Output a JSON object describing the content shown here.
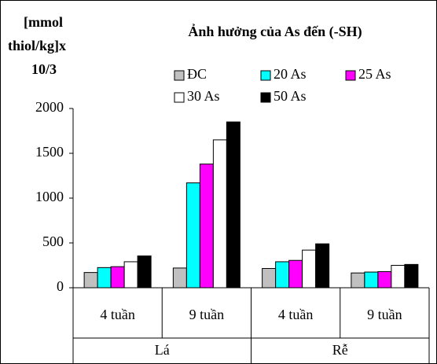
{
  "chart_data": {
    "type": "bar",
    "title": "Ảnh hưởng của As đến (-SH)",
    "y_label": [
      "[mmol",
      "thiol/kg]x",
      "10/3"
    ],
    "categories": [
      "4 tuần",
      "9 tuần",
      "4 tuần",
      "9 tuần"
    ],
    "category_groups": [
      "Lá",
      "Rễ"
    ],
    "series": [
      {
        "name": "ĐC",
        "color": "#c0c0c0",
        "values": [
          170,
          220,
          215,
          165
        ]
      },
      {
        "name": "20 As",
        "color": "#00ffff",
        "values": [
          225,
          1170,
          290,
          175
        ]
      },
      {
        "name": "25 As",
        "color": "#ff00ff",
        "values": [
          235,
          1380,
          305,
          180
        ]
      },
      {
        "name": "30 As",
        "color": "#ffffff",
        "values": [
          290,
          1650,
          420,
          250
        ]
      },
      {
        "name": "50 As",
        "color": "#000000",
        "values": [
          355,
          1850,
          490,
          260
        ]
      }
    ],
    "ylim": [
      0,
      2000
    ],
    "yticks": [
      0,
      500,
      1000,
      1500,
      2000
    ]
  }
}
